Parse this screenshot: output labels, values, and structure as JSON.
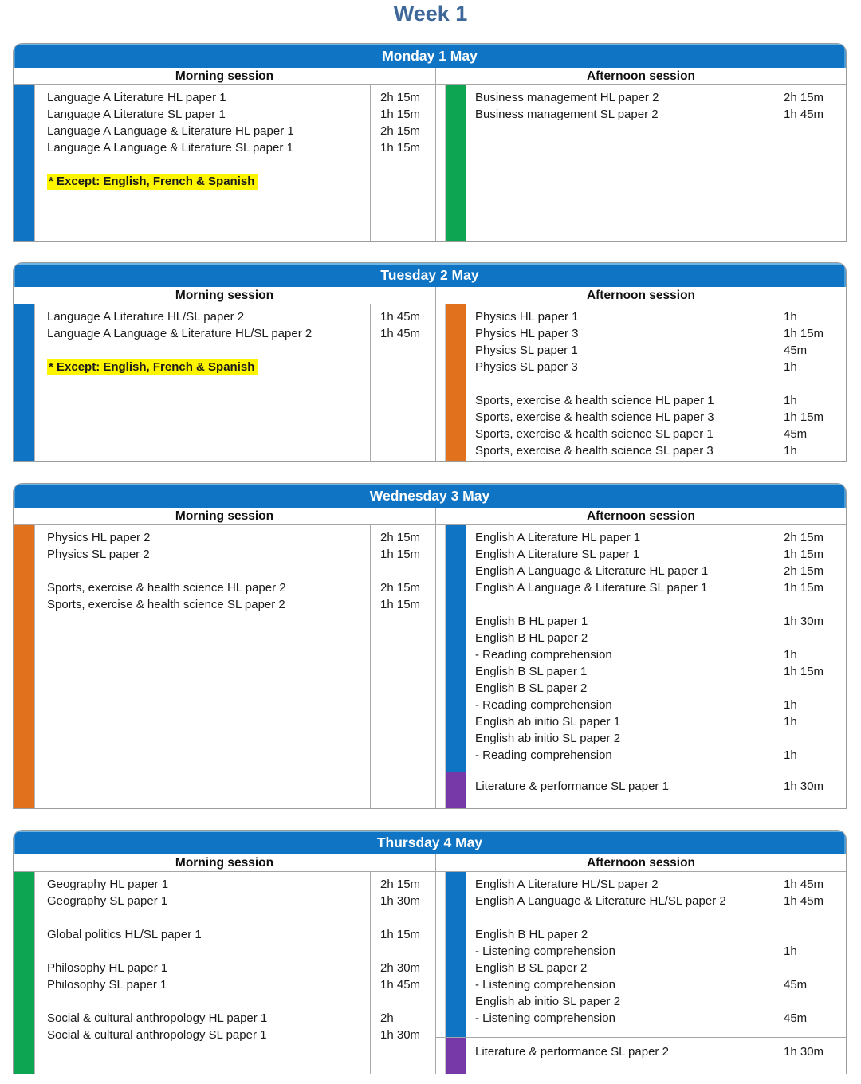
{
  "week_title": "Week 1",
  "session_headers": {
    "morning": "Morning session",
    "afternoon": "Afternoon session"
  },
  "colors": {
    "header_blue": "#1074c4",
    "bar_blue": "#1074c4",
    "bar_green": "#0da551",
    "bar_orange": "#e1711c",
    "bar_purple": "#7839a8",
    "highlight_yellow": "#fdf500",
    "title_text": "#3d6899",
    "outer_border": "#9c9c9c",
    "inner_border": "#a6a6a6"
  },
  "days": [
    {
      "title": "Monday 1 May",
      "content_height": 195,
      "morning": {
        "bar_color": "blue",
        "rows": [
          {
            "name": "Language A Literature HL paper 1",
            "time": "2h 15m"
          },
          {
            "name": "Language A Literature SL paper 1",
            "time": "1h 15m"
          },
          {
            "name": "Language A Language & Literature HL paper 1",
            "time": "2h 15m"
          },
          {
            "name": "Language A Language & Literature SL paper 1",
            "time": "1h 15m"
          },
          {
            "name": "",
            "time": ""
          },
          {
            "name": "* Except: English, French & Spanish",
            "time": "",
            "highlight": true
          }
        ]
      },
      "afternoon": {
        "bar_color": "green",
        "rows": [
          {
            "name": "Business management HL paper 2",
            "time": "2h 15m"
          },
          {
            "name": "Business management SL paper 2",
            "time": "1h 45m"
          }
        ]
      }
    },
    {
      "title": "Tuesday 2 May",
      "content_height": 197,
      "morning": {
        "bar_color": "blue",
        "rows": [
          {
            "name": "Language A Literature HL/SL paper 2",
            "time": "1h 45m"
          },
          {
            "name": "Language A Language & Literature HL/SL paper 2",
            "time": "1h 45m"
          },
          {
            "name": "",
            "time": ""
          },
          {
            "name": "* Except: English, French & Spanish",
            "time": "",
            "highlight": true
          }
        ]
      },
      "afternoon": {
        "bar_color": "orange",
        "rows": [
          {
            "name": "Physics HL paper 1",
            "time": "1h"
          },
          {
            "name": "Physics HL paper 3",
            "time": "1h 15m"
          },
          {
            "name": "Physics SL paper 1",
            "time": "45m"
          },
          {
            "name": "Physics SL paper 3",
            "time": "1h"
          },
          {
            "name": "",
            "time": ""
          },
          {
            "name": "Sports, exercise & health science HL paper 1",
            "time": "1h"
          },
          {
            "name": "Sports, exercise & health science HL paper 3",
            "time": "1h 15m"
          },
          {
            "name": "Sports, exercise & health science SL paper 1",
            "time": "45m"
          },
          {
            "name": "Sports, exercise & health science SL paper 3",
            "time": "1h"
          }
        ]
      }
    },
    {
      "title": "Wednesday 3 May",
      "content_height": 355,
      "morning": {
        "bar_color": "orange",
        "rows": [
          {
            "name": "Physics HL paper 2",
            "time": "2h 15m"
          },
          {
            "name": "Physics SL paper 2",
            "time": "1h 15m"
          },
          {
            "name": "",
            "time": ""
          },
          {
            "name": "Sports, exercise & health science HL paper 2",
            "time": "2h 15m"
          },
          {
            "name": "Sports, exercise & health science SL paper 2",
            "time": "1h 15m"
          }
        ]
      },
      "afternoon": {
        "bar_color": "blue",
        "rows": [
          {
            "name": "English A Literature HL paper 1",
            "time": "2h 15m"
          },
          {
            "name": "English A Literature SL paper 1",
            "time": "1h 15m"
          },
          {
            "name": "English A Language & Literature HL paper 1",
            "time": "2h 15m"
          },
          {
            "name": "English A Language & Literature SL paper 1",
            "time": "1h 15m"
          },
          {
            "name": "",
            "time": ""
          },
          {
            "name": "English B HL paper 1",
            "time": "1h 30m"
          },
          {
            "name": "English B HL paper 2",
            "time": ""
          },
          {
            "name": "- Reading comprehension",
            "time": "1h"
          },
          {
            "name": "English B SL paper 1",
            "time": "1h 15m"
          },
          {
            "name": "English B SL paper 2",
            "time": ""
          },
          {
            "name": "- Reading comprehension",
            "time": "1h"
          },
          {
            "name": "English ab initio SL paper 1",
            "time": "1h"
          },
          {
            "name": "English ab initio SL paper 2",
            "time": ""
          },
          {
            "name": "- Reading comprehension",
            "time": "1h"
          }
        ],
        "extra": {
          "bar_color": "purple",
          "rows": [
            {
              "name": "Literature & performance SL paper 1",
              "time": "1h 30m"
            }
          ]
        }
      }
    },
    {
      "title": "Thursday 4 May",
      "content_height": 253,
      "morning": {
        "bar_color": "green",
        "rows": [
          {
            "name": "Geography HL paper 1",
            "time": "2h 15m"
          },
          {
            "name": "Geography SL paper 1",
            "time": "1h 30m"
          },
          {
            "name": "",
            "time": ""
          },
          {
            "name": "Global politics HL/SL paper 1",
            "time": "1h 15m"
          },
          {
            "name": "",
            "time": ""
          },
          {
            "name": "Philosophy HL paper 1",
            "time": "2h 30m"
          },
          {
            "name": "Philosophy SL paper 1",
            "time": "1h 45m"
          },
          {
            "name": "",
            "time": ""
          },
          {
            "name": "Social & cultural anthropology HL paper 1",
            "time": "2h"
          },
          {
            "name": "Social & cultural anthropology SL paper 1",
            "time": "1h 30m"
          }
        ]
      },
      "afternoon": {
        "bar_color": "blue",
        "rows": [
          {
            "name": "English A Literature HL/SL paper 2",
            "time": "1h 45m"
          },
          {
            "name": "English A Language & Literature HL/SL paper 2",
            "time": "1h 45m"
          },
          {
            "name": "",
            "time": ""
          },
          {
            "name": "English B HL paper 2",
            "time": ""
          },
          {
            "name": "- Listening comprehension",
            "time": "1h"
          },
          {
            "name": "English B SL paper 2",
            "time": ""
          },
          {
            "name": "- Listening comprehension",
            "time": "45m"
          },
          {
            "name": "English ab initio SL paper 2",
            "time": ""
          },
          {
            "name": "- Listening comprehension",
            "time": "45m"
          }
        ],
        "extra": {
          "bar_color": "purple",
          "rows": [
            {
              "name": "Literature & performance SL paper 2",
              "time": "1h 30m"
            }
          ]
        }
      }
    }
  ]
}
